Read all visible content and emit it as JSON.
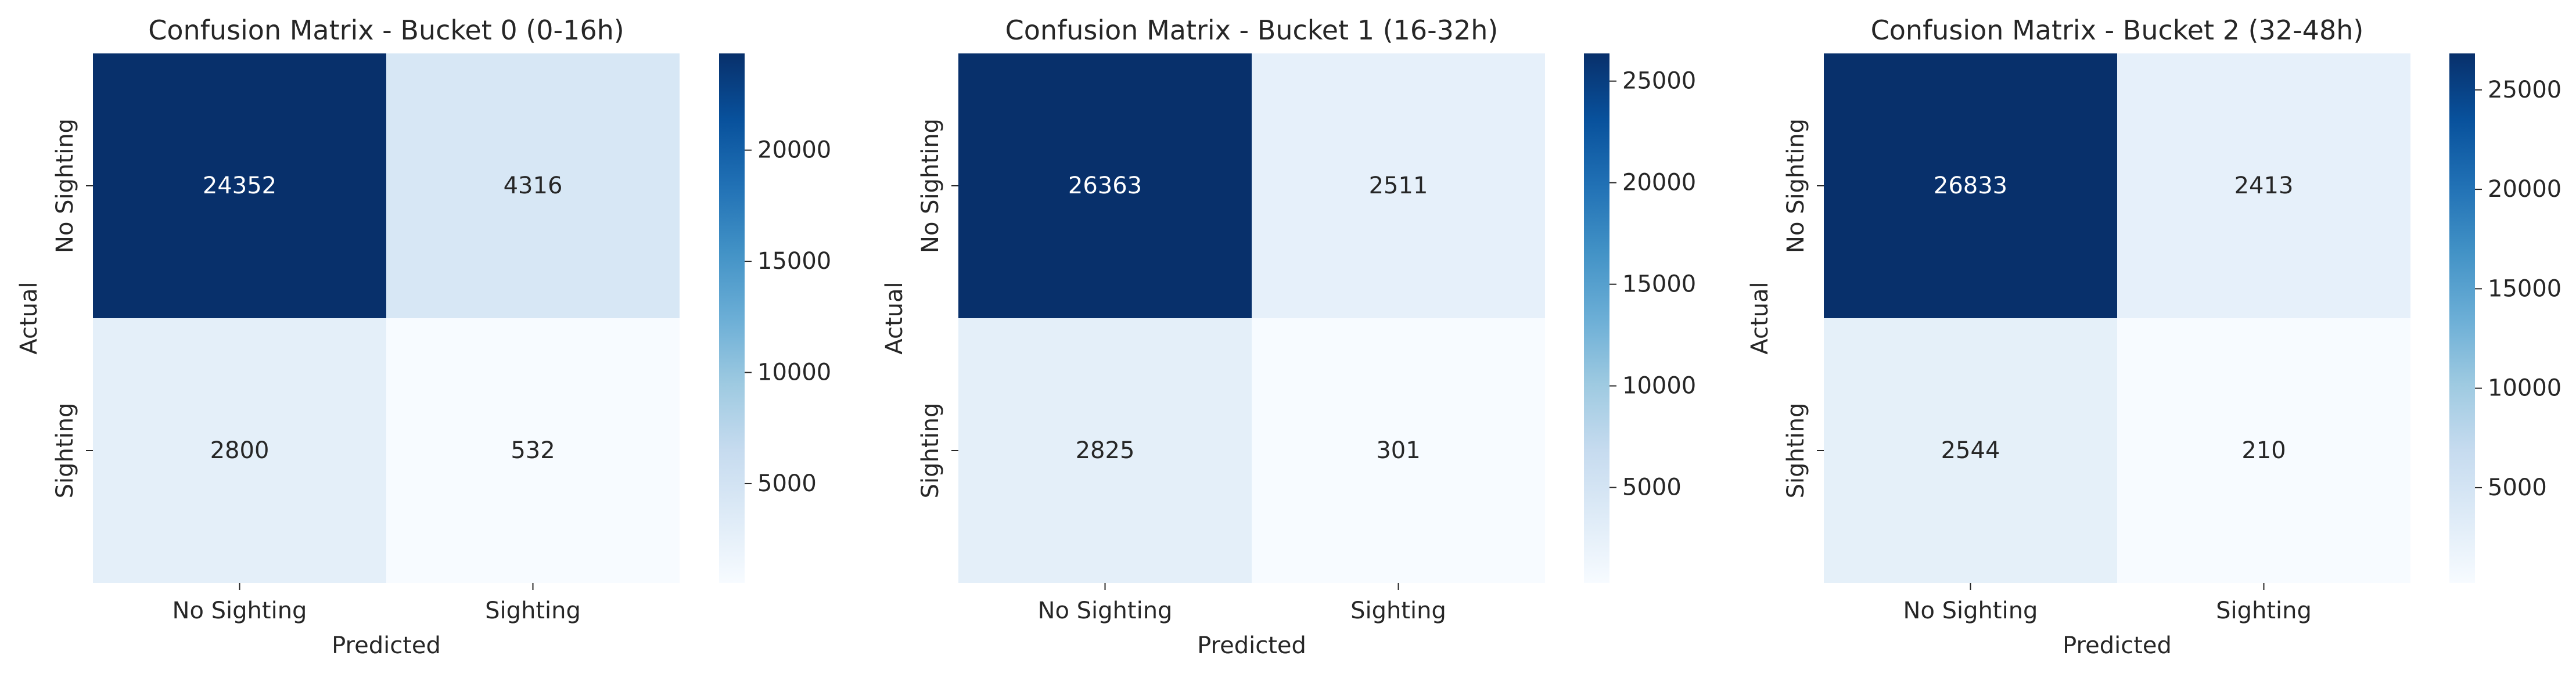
{
  "chart_data": [
    {
      "type": "heatmap",
      "title": "Confusion Matrix - Bucket 0 (0-16h)",
      "xlabel": "Predicted",
      "ylabel": "Actual",
      "x_categories": [
        "No Sighting",
        "Sighting"
      ],
      "y_categories": [
        "No Sighting",
        "Sighting"
      ],
      "values": [
        [
          24352,
          4316
        ],
        [
          2800,
          532
        ]
      ],
      "colormap": "Blues",
      "colorbar": {
        "range": [
          532,
          24352
        ],
        "ticks": [
          5000,
          10000,
          15000,
          20000
        ]
      }
    },
    {
      "type": "heatmap",
      "title": "Confusion Matrix - Bucket 1 (16-32h)",
      "xlabel": "Predicted",
      "ylabel": "Actual",
      "x_categories": [
        "No Sighting",
        "Sighting"
      ],
      "y_categories": [
        "No Sighting",
        "Sighting"
      ],
      "values": [
        [
          26363,
          2511
        ],
        [
          2825,
          301
        ]
      ],
      "colormap": "Blues",
      "colorbar": {
        "range": [
          301,
          26363
        ],
        "ticks": [
          5000,
          10000,
          15000,
          20000,
          25000
        ]
      }
    },
    {
      "type": "heatmap",
      "title": "Confusion Matrix - Bucket 2 (32-48h)",
      "xlabel": "Predicted",
      "ylabel": "Actual",
      "x_categories": [
        "No Sighting",
        "Sighting"
      ],
      "y_categories": [
        "No Sighting",
        "Sighting"
      ],
      "values": [
        [
          26833,
          2413
        ],
        [
          2544,
          210
        ]
      ],
      "colormap": "Blues",
      "colorbar": {
        "range": [
          210,
          26833
        ],
        "ticks": [
          5000,
          10000,
          15000,
          20000,
          25000
        ]
      }
    }
  ]
}
